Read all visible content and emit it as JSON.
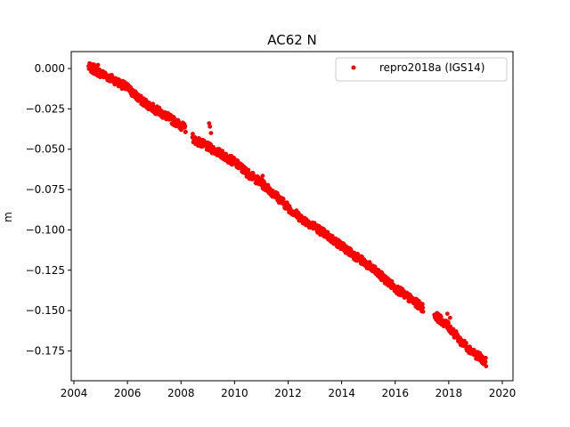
{
  "chart_data": {
    "type": "scatter",
    "title": "AC62 N",
    "xlabel": "",
    "ylabel": "m",
    "xlim": [
      2003.9,
      2020.4
    ],
    "ylim": [
      -0.1935,
      0.0105
    ],
    "x_ticks": [
      2004,
      2006,
      2008,
      2010,
      2012,
      2014,
      2016,
      2018,
      2020
    ],
    "x_tick_labels": [
      "2004",
      "2006",
      "2008",
      "2010",
      "2012",
      "2014",
      "2016",
      "2018",
      "2020"
    ],
    "y_ticks": [
      0.0,
      -0.025,
      -0.05,
      -0.075,
      -0.1,
      -0.125,
      -0.15,
      -0.175
    ],
    "y_tick_labels": [
      "0.000",
      "−0.025",
      "−0.050",
      "−0.075",
      "−0.100",
      "−0.125",
      "−0.150",
      "−0.175"
    ],
    "grid": false,
    "legend_position": "top-right",
    "series": [
      {
        "name": "repro2018a (IGS14)",
        "color": "#ff0000",
        "marker": "circle",
        "trend": [
          [
            2004.55,
            0.001
          ],
          [
            2005.0,
            -0.003
          ],
          [
            2005.5,
            -0.007
          ],
          [
            2006.0,
            -0.012
          ],
          [
            2006.5,
            -0.0195
          ],
          [
            2007.0,
            -0.025
          ],
          [
            2007.5,
            -0.03
          ],
          [
            2008.15,
            -0.037
          ],
          [
            2008.5,
            -0.044
          ],
          [
            2009.0,
            -0.0485
          ],
          [
            2009.5,
            -0.053
          ],
          [
            2010.0,
            -0.058
          ],
          [
            2010.5,
            -0.065
          ],
          [
            2011.0,
            -0.071
          ],
          [
            2011.5,
            -0.078
          ],
          [
            2012.0,
            -0.086
          ],
          [
            2012.5,
            -0.093
          ],
          [
            2013.0,
            -0.098
          ],
          [
            2013.5,
            -0.104
          ],
          [
            2014.0,
            -0.11
          ],
          [
            2014.5,
            -0.116
          ],
          [
            2015.0,
            -0.122
          ],
          [
            2015.5,
            -0.129
          ],
          [
            2016.0,
            -0.136
          ],
          [
            2016.5,
            -0.142
          ],
          [
            2017.0,
            -0.148
          ],
          [
            2017.5,
            -0.153
          ],
          [
            2018.0,
            -0.16
          ],
          [
            2018.5,
            -0.17
          ],
          [
            2019.0,
            -0.177
          ],
          [
            2019.4,
            -0.182
          ]
        ],
        "extra_points": [
          [
            2004.75,
            0.0025
          ],
          [
            2004.9,
            0.0022
          ],
          [
            2009.05,
            -0.034
          ],
          [
            2009.08,
            -0.036
          ],
          [
            2009.12,
            -0.04
          ],
          [
            2011.05,
            -0.0665
          ],
          [
            2017.95,
            -0.152
          ],
          [
            2018.05,
            -0.1545
          ]
        ]
      }
    ]
  }
}
